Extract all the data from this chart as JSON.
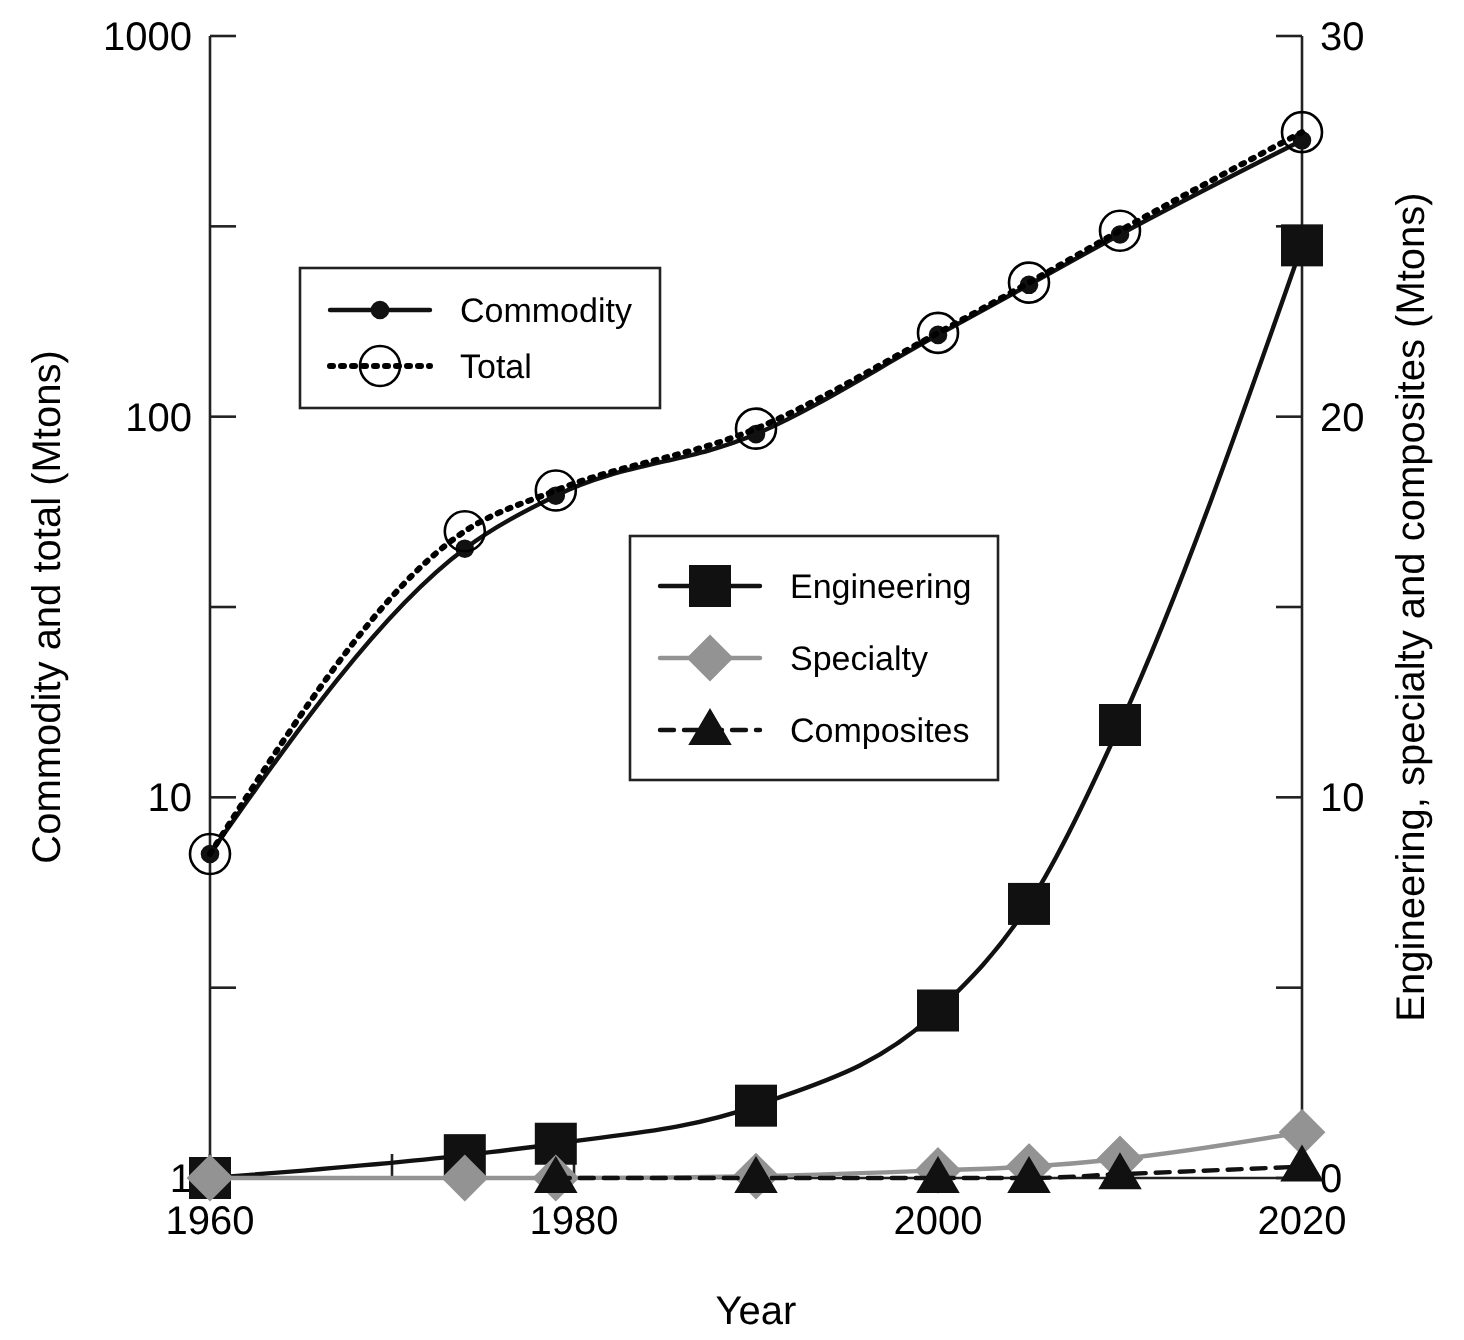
{
  "chart_data": {
    "type": "line",
    "xlabel": "Year",
    "ylabel": "Commodity and total (Mtons)",
    "y2label": "Engineering, specialty and composites (Mtons)",
    "log": "y",
    "legend": "top left",
    "xlim": [
      1960,
      2020
    ],
    "xticks": [
      1960,
      {
        "value": 1970,
        "label": null
      },
      1980,
      {
        "value": 1990,
        "label": null
      },
      2000,
      {
        "value": 2010,
        "label": null
      },
      2020
    ],
    "ylim": [
      1,
      1000
    ],
    "yticks": [
      1,
      {
        "value": 3.162,
        "label": null
      },
      10,
      {
        "value": 31.62,
        "label": null
      },
      100,
      {
        "value": 316.2,
        "label": null
      },
      1000
    ],
    "y2lim": [
      0,
      30
    ],
    "y2ticks": [
      0,
      {
        "value": 5,
        "label": null
      },
      10,
      {
        "value": 15,
        "label": null
      },
      20,
      {
        "value": 25,
        "label": null
      },
      30
    ],
    "series": [
      {
        "name": "Commodity",
        "color": "#111111",
        "marker": "circle",
        "line_style": "solid",
        "x": [
          1960,
          1974,
          1979,
          1990,
          2000,
          2005,
          2010,
          2020
        ],
        "values": [
          7.1,
          45,
          62,
          90,
          164,
          222,
          301,
          532
        ]
      },
      {
        "name": "Total",
        "color": "#000000",
        "marker": "circle",
        "line_style": "dotted",
        "x": [
          1960,
          1974,
          1979,
          1990,
          2000,
          2005,
          2010,
          2020
        ],
        "values": [
          7.1,
          50,
          64,
          93,
          166,
          225,
          308,
          559
        ]
      },
      {
        "name": "Engineering",
        "color": "#111111",
        "marker": "square",
        "line_style": "solid",
        "axis": "y2",
        "x": [
          1960,
          1974,
          1979,
          1990,
          2000,
          2005,
          2010,
          2020
        ],
        "values": [
          0,
          0.6,
          0.9,
          1.9,
          4.4,
          7.2,
          11.9,
          24.5
        ]
      },
      {
        "name": "Specialty",
        "color": "#939393",
        "marker": "diamond",
        "line_style": "solid",
        "axis": "y2",
        "x": [
          1960,
          1974,
          1979,
          1990,
          2000,
          2005,
          2010,
          2020
        ],
        "values": [
          0,
          0,
          0,
          0.05,
          0.2,
          0.3,
          0.5,
          1.2
        ]
      },
      {
        "name": "Composites",
        "color": "#111111",
        "marker": "triangle",
        "line_style": "dashed",
        "axis": "y2",
        "x": [
          1979,
          1990,
          2000,
          2005,
          2010,
          2020
        ],
        "values": [
          0,
          0,
          0,
          0,
          0.1,
          0.3
        ]
      }
    ]
  }
}
